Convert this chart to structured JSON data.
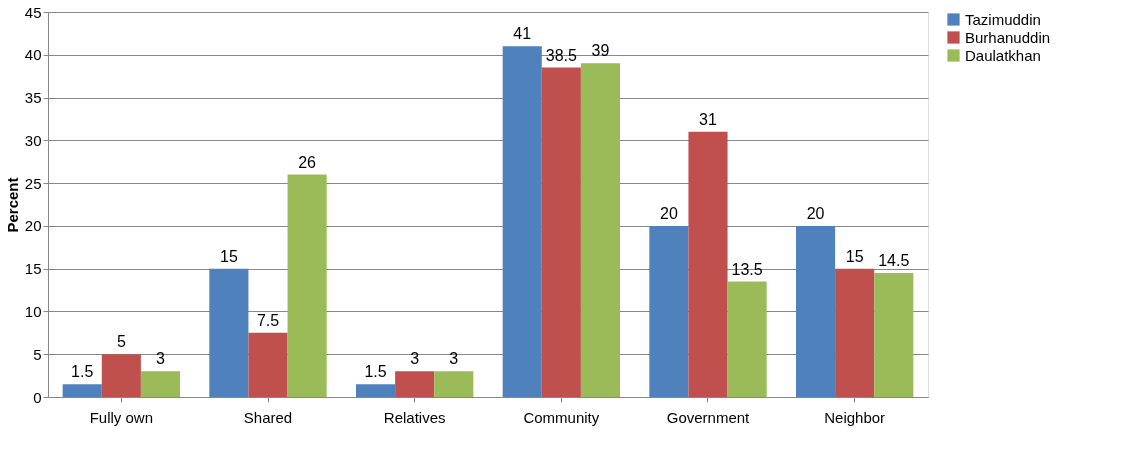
{
  "chart_data": {
    "type": "bar",
    "ylabel": "Percent",
    "categories": [
      "Fully own",
      "Shared",
      "Relatives",
      "Community",
      "Government",
      "Neighbor"
    ],
    "series": [
      {
        "name": "Tazimuddin",
        "color": "#4f81bd",
        "values": [
          1.5,
          15,
          1.5,
          41,
          20,
          20
        ]
      },
      {
        "name": "Burhanuddin",
        "color": "#c0504d",
        "values": [
          5,
          7.5,
          3,
          38.5,
          31,
          15
        ]
      },
      {
        "name": "Daulatkhan",
        "color": "#9bbb59",
        "values": [
          3,
          26,
          3,
          39,
          13.5,
          14.5
        ]
      }
    ],
    "ylim": [
      0,
      45
    ],
    "yticks": [
      0,
      5,
      10,
      15,
      20,
      25,
      30,
      35,
      40,
      45
    ],
    "grid": "y",
    "legend": "right",
    "data_labels": true
  }
}
